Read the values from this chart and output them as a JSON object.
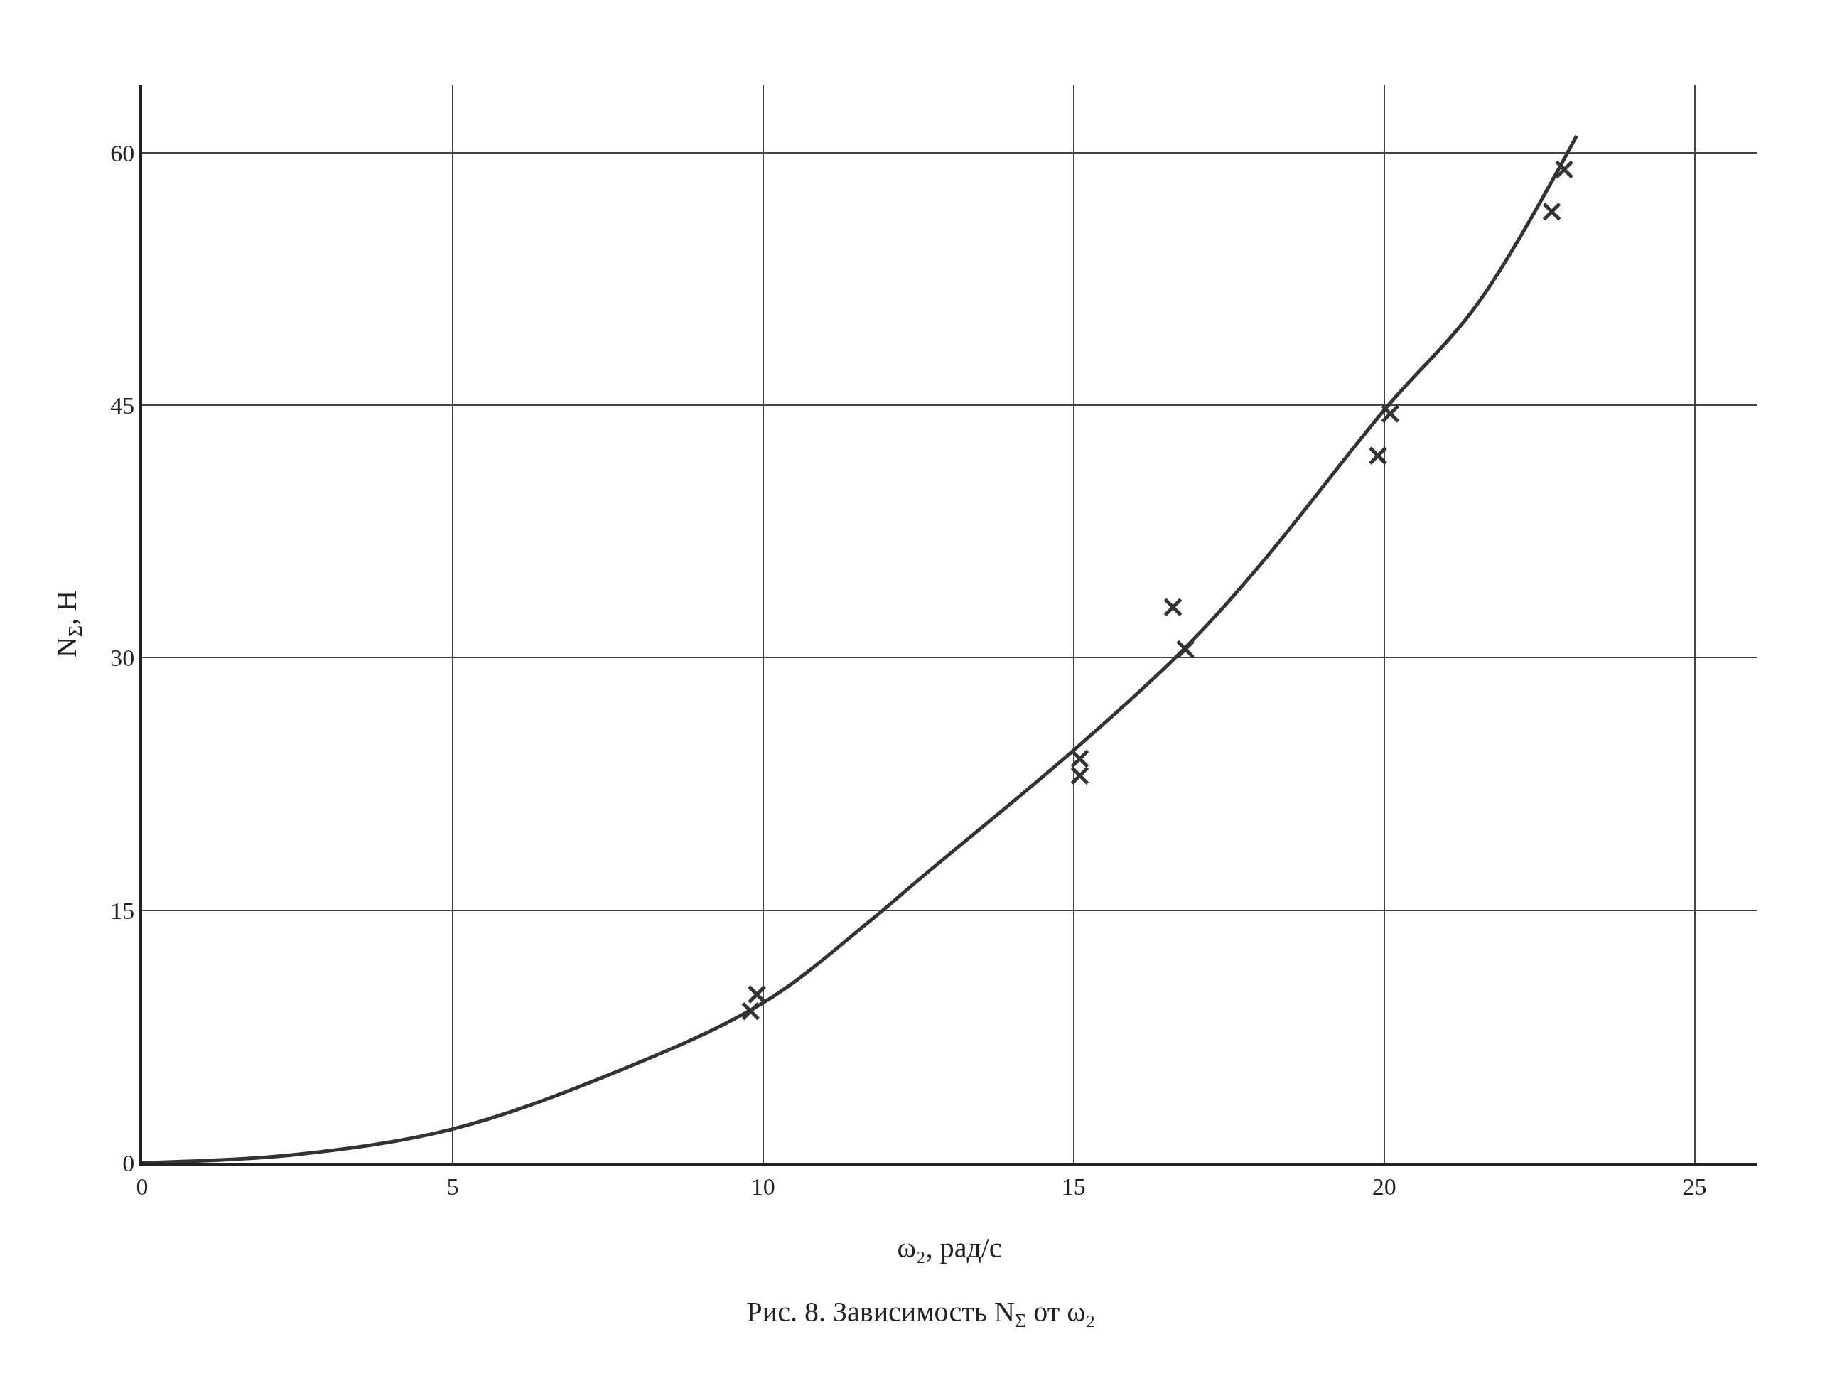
{
  "chart_data": {
    "type": "scatter",
    "title": "Рис. 8. Зависимость N$_{Σ}$ от ω₂",
    "xlabel": "ω₂, рад/с",
    "ylabel": "N$_{Σ}$, Н",
    "xlim": [
      0,
      26
    ],
    "ylim": [
      0,
      64
    ],
    "xticks": [
      0,
      5,
      10,
      15,
      20,
      25
    ],
    "yticks": [
      0,
      15,
      30,
      45,
      60
    ],
    "grid": true,
    "legend": false,
    "series": [
      {
        "type": "line",
        "color": "#333333",
        "line_style": "solid",
        "marker": "none",
        "x": [
          0,
          2.5,
          5,
          7.5,
          10,
          11.7,
          12.5,
          15,
          16.8,
          18,
          20,
          21.5,
          23.1
        ],
        "values": [
          0,
          0.5,
          2,
          5.2,
          9.5,
          14.3,
          16.8,
          24.5,
          30.6,
          35.5,
          44.7,
          51,
          61
        ]
      },
      {
        "color": "#333333",
        "marker": "cross",
        "x": [
          22.9,
          22.7,
          20.1,
          19.9,
          16.6,
          16.8,
          15.1,
          15.1,
          9.9,
          9.8
        ],
        "values": [
          59,
          56.5,
          44.5,
          42,
          33,
          30.5,
          24,
          23,
          10,
          9
        ]
      }
    ]
  }
}
